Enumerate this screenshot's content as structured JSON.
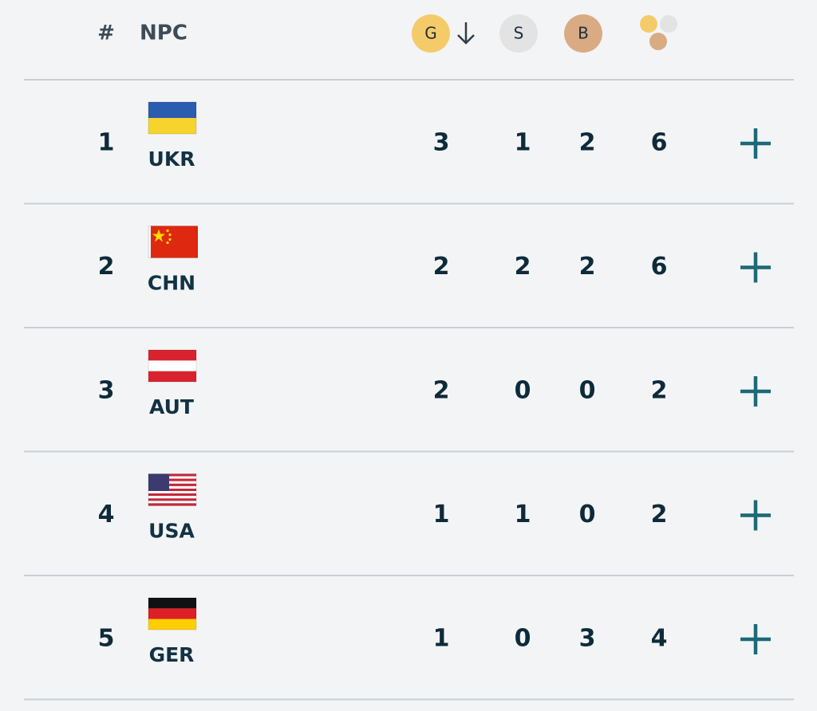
{
  "header": {
    "rank": "#",
    "npc": "NPC",
    "gold": "G",
    "silver": "S",
    "bronze": "B"
  },
  "rows": [
    {
      "rank": 1,
      "npc": "UKR",
      "gold": 3,
      "silver": 1,
      "bronze": 2,
      "total": 6
    },
    {
      "rank": 2,
      "npc": "CHN",
      "gold": 2,
      "silver": 2,
      "bronze": 2,
      "total": 6
    },
    {
      "rank": 3,
      "npc": "AUT",
      "gold": 2,
      "silver": 0,
      "bronze": 0,
      "total": 2
    },
    {
      "rank": 4,
      "npc": "USA",
      "gold": 1,
      "silver": 1,
      "bronze": 0,
      "total": 2
    },
    {
      "rank": 5,
      "npc": "GER",
      "gold": 1,
      "silver": 0,
      "bronze": 3,
      "total": 4
    }
  ]
}
